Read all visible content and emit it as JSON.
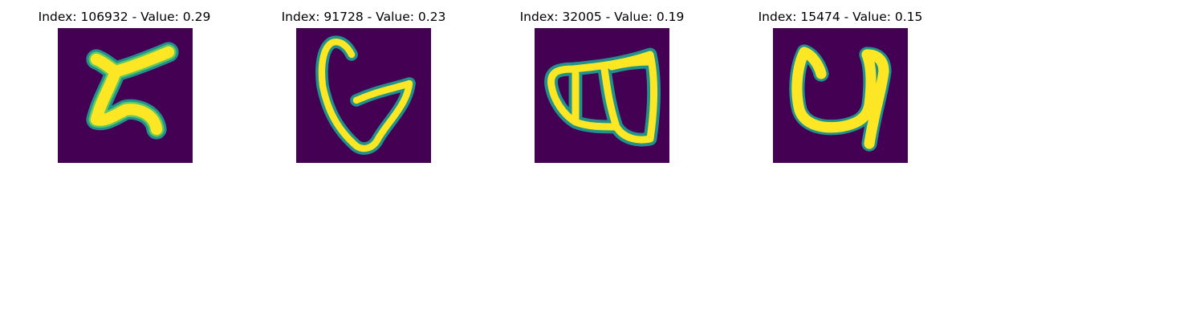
{
  "colors": {
    "background": "#440154",
    "stroke_edge": "#21918c",
    "stroke_mid": "#5ec962",
    "stroke_core": "#fde725"
  },
  "panels": [
    {
      "title": "Index: 106932 - Value: 0.29",
      "glyph": "z-like-character"
    },
    {
      "title": "Index: 91728 - Value: 0.23",
      "glyph": "g-like-character"
    },
    {
      "title": "Index: 32005 - Value: 0.19",
      "glyph": "double-loop-character"
    },
    {
      "title": "Index: 15474 - Value: 0.15",
      "glyph": "u-like-character"
    }
  ]
}
